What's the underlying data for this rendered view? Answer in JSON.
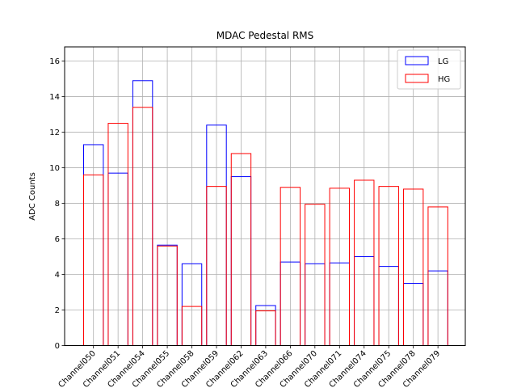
{
  "chart_data": {
    "type": "bar",
    "title": "MDAC Pedestal RMS",
    "xlabel": "",
    "ylabel": "ADC Counts",
    "ylim": [
      0,
      16.8
    ],
    "yticks": [
      0,
      2,
      4,
      6,
      8,
      10,
      12,
      14,
      16
    ],
    "grid": true,
    "legend_position": "top-right",
    "categories": [
      "Channel050",
      "Channel051",
      "Channel054",
      "Channel055",
      "Channel058",
      "Channel059",
      "Channel062",
      "Channel063",
      "Channel066",
      "Channel070",
      "Channel071",
      "Channel074",
      "Channel075",
      "Channel078",
      "Channel079"
    ],
    "series": [
      {
        "name": "LG",
        "color": "#0000ff",
        "values": [
          11.3,
          9.7,
          14.9,
          5.65,
          4.6,
          12.4,
          9.5,
          2.25,
          4.7,
          4.6,
          4.65,
          5.0,
          4.45,
          3.5,
          4.2
        ]
      },
      {
        "name": "HG",
        "color": "#ff0000",
        "values": [
          9.6,
          12.5,
          13.4,
          5.6,
          2.2,
          8.95,
          10.8,
          1.95,
          8.9,
          7.95,
          8.85,
          9.3,
          8.95,
          8.8,
          7.8
        ]
      }
    ]
  }
}
